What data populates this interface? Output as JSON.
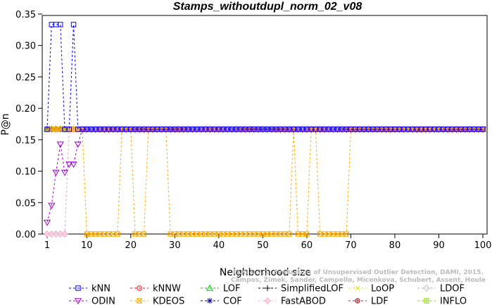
{
  "chart_data": {
    "type": "line",
    "title": "Stamps_withoutdupl_norm_02_v08",
    "xlabel": "Neighborhood size",
    "ylabel": "P@n",
    "xlim": [
      1,
      100
    ],
    "ylim": [
      0,
      0.35
    ],
    "x_ticks": [
      1,
      10,
      20,
      30,
      40,
      50,
      60,
      70,
      80,
      90,
      100
    ],
    "y_ticks": [
      0.0,
      0.05,
      0.1,
      0.15,
      0.2,
      0.25,
      0.3,
      0.35
    ],
    "x_tick_labels": [
      "1",
      "10",
      "20",
      "30",
      "40",
      "50",
      "60",
      "70",
      "80",
      "90",
      "100"
    ],
    "y_tick_labels": [
      "0.00",
      "0.05",
      "0.10",
      "0.15",
      "0.20",
      "0.25",
      "0.30",
      "0.35"
    ],
    "grid": false,
    "legend_position": "bottom",
    "series": [
      {
        "name": "kNN",
        "color": "#0000ff",
        "marker": "square",
        "values": {
          "default": 0.1667,
          "points": {
            "2": 0.3333,
            "3": 0.3333,
            "4": 0.3333,
            "7": 0.3333
          }
        }
      },
      {
        "name": "kNNW",
        "color": "#ff0000",
        "marker": "circle",
        "values": {
          "default": 0.1667
        }
      },
      {
        "name": "LOF",
        "color": "#00cc00",
        "marker": "triangle-up",
        "values": {
          "default": 0.1667
        }
      },
      {
        "name": "SimplifiedLOF",
        "color": "#000000",
        "marker": "plus",
        "values": {
          "default": 0.1667
        }
      },
      {
        "name": "LoOP",
        "color": "#e6e600",
        "marker": "x",
        "values": {
          "default": 0.1667
        }
      },
      {
        "name": "LDOF",
        "color": "#bbbbbb",
        "marker": "diamond",
        "values": {
          "default": 0.1667,
          "points": {
            "1": 0.0,
            "2": 0.0,
            "3": 0.0,
            "4": 0.0,
            "5": 0.0
          }
        }
      },
      {
        "name": "ODIN",
        "color": "#9900cc",
        "marker": "triangle-down",
        "values": {
          "default": 0.1667,
          "points": {
            "1": 0.0185,
            "2": 0.0455,
            "3": 0.098,
            "4": 0.1429,
            "5": 0.098,
            "6": 0.1111,
            "7": 0.1111,
            "8": 0.1429
          }
        }
      },
      {
        "name": "KDEOS",
        "color": "#ffaa00",
        "marker": "square-x",
        "values": {
          "default": 0.1667,
          "zero_ranges": [
            [
              10,
              17
            ],
            [
              21,
              23
            ],
            [
              29,
              56
            ],
            [
              58,
              60
            ],
            [
              63,
              69
            ]
          ]
        }
      },
      {
        "name": "COF",
        "color": "#000080",
        "marker": "star",
        "values": {
          "default": 0.1667
        }
      },
      {
        "name": "FastABOD",
        "color": "#ffaacc",
        "marker": "diamond-plus",
        "values": {
          "default": 0.1667,
          "points": {
            "1": 0.0,
            "2": 0.0,
            "3": 0.0,
            "4": 0.0,
            "5": 0.0
          }
        }
      },
      {
        "name": "LDF",
        "color": "#aa2222",
        "marker": "circle-plus",
        "values": {
          "default": 0.1667
        }
      },
      {
        "name": "INFLO",
        "color": "#88dd00",
        "marker": "square-cross",
        "values": {
          "default": 0.1667
        }
      }
    ],
    "annotation": "ELKI 0.7.1: Evaluation of Unsupervised Outlier Detection, DAMI, 2015. Campos, Zimek, Sander, Campello, Micenkova, Schubert, Assent, Houle"
  }
}
